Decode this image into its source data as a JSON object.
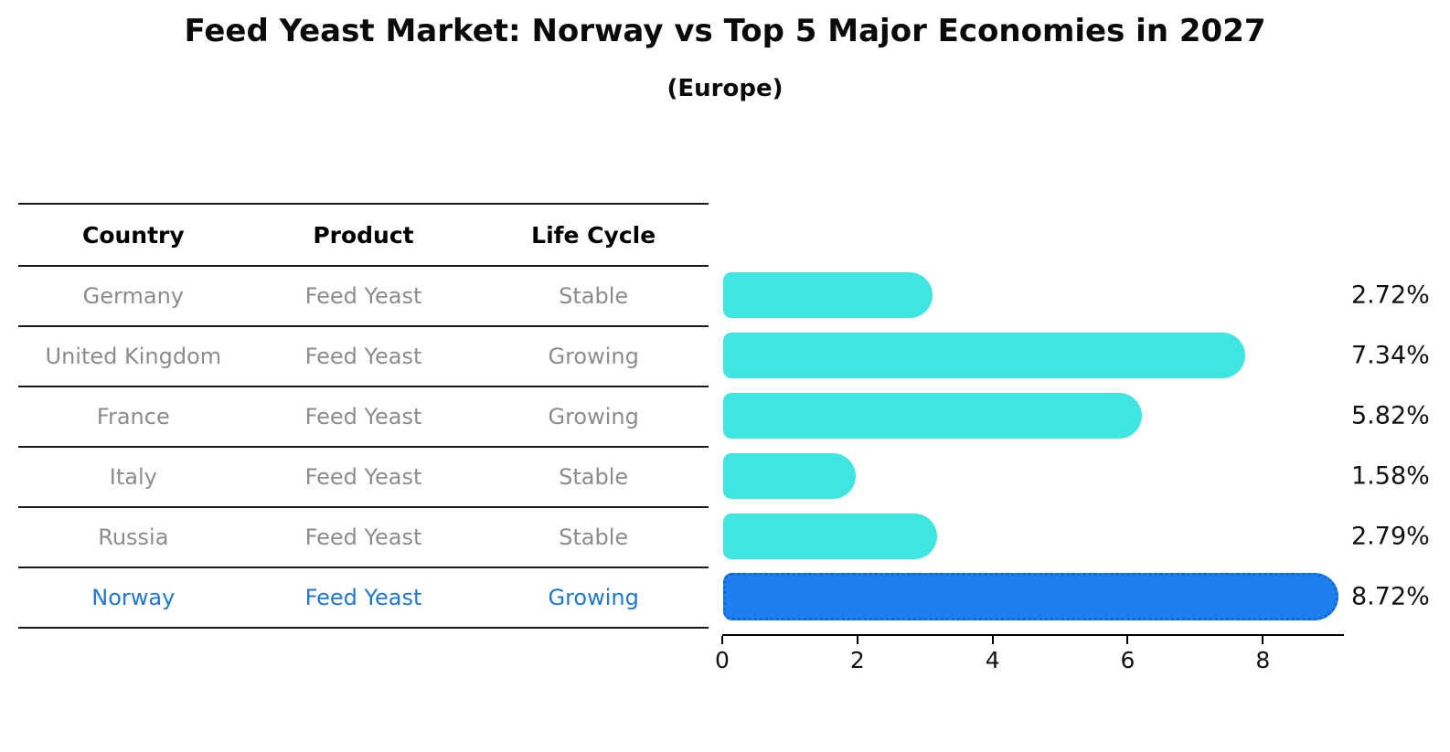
{
  "title": "Feed Yeast Market: Norway vs Top 5 Major Economies in 2027",
  "subtitle": "(Europe)",
  "table": {
    "headers": [
      "Country",
      "Product",
      "Life Cycle"
    ],
    "rows": [
      {
        "country": "Germany",
        "product": "Feed Yeast",
        "life_cycle": "Stable",
        "highlight": false
      },
      {
        "country": "United Kingdom",
        "product": "Feed Yeast",
        "life_cycle": "Growing",
        "highlight": false
      },
      {
        "country": "France",
        "product": "Feed Yeast",
        "life_cycle": "Growing",
        "highlight": false
      },
      {
        "country": "Italy",
        "product": "Feed Yeast",
        "life_cycle": "Stable",
        "highlight": false
      },
      {
        "country": "Russia",
        "product": "Feed Yeast",
        "life_cycle": "Stable",
        "highlight": false
      },
      {
        "country": "Norway",
        "product": "Feed Yeast",
        "life_cycle": "Growing",
        "highlight": true
      }
    ]
  },
  "chart_data": {
    "type": "bar",
    "orientation": "horizontal",
    "title": "Feed Yeast Market: Norway vs Top 5 Major Economies in 2027",
    "subtitle": "(Europe)",
    "categories": [
      "Germany",
      "United Kingdom",
      "France",
      "Italy",
      "Russia",
      "Norway"
    ],
    "values": [
      2.72,
      7.34,
      5.82,
      1.58,
      2.79,
      8.72
    ],
    "value_labels": [
      "2.72%",
      "7.34%",
      "5.82%",
      "1.58%",
      "2.79%",
      "8.72%"
    ],
    "highlight_category": "Norway",
    "xticks": [
      0,
      2,
      4,
      6,
      8
    ],
    "xlim": [
      0,
      9.2
    ],
    "grid": false,
    "legend": "none",
    "colors": {
      "bar_default": "#40e5e0",
      "bar_highlight": "#1e80ee",
      "bar_highlight_border": "#1266d8",
      "highlight_text": "#1f77cf",
      "row_text": "#8c8c8c",
      "axis": "#000000"
    }
  }
}
